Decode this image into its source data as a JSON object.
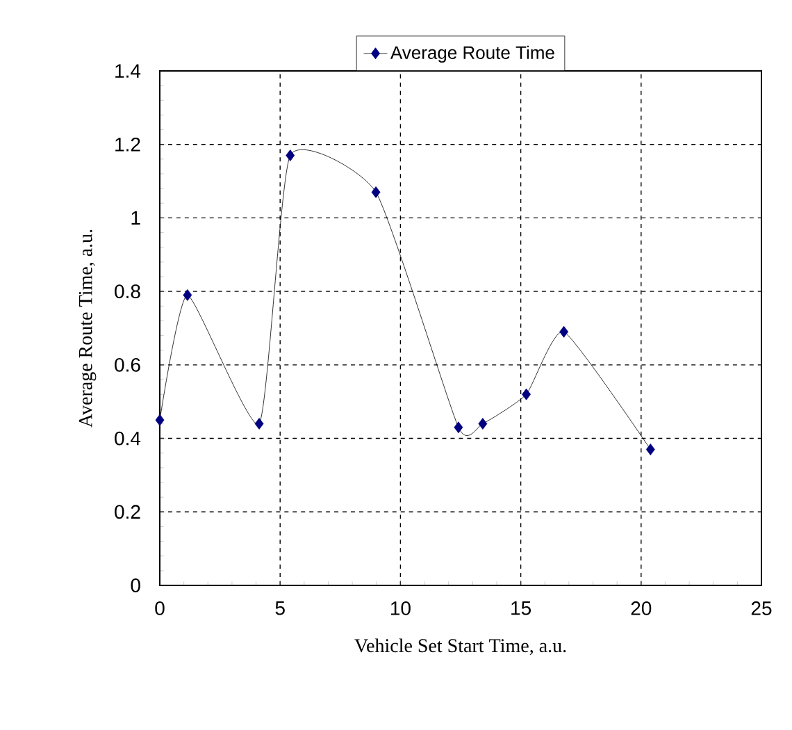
{
  "chart_data": {
    "type": "line",
    "xlabel": "Vehicle Set Start Time, a.u.",
    "ylabel": "Average Route Time, a.u.",
    "x": [
      0,
      1.15,
      4.13,
      5.42,
      8.98,
      12.41,
      13.42,
      15.23,
      16.79,
      20.39
    ],
    "series": [
      {
        "name": "Average Route Time",
        "color": "#000080",
        "values": [
          0.45,
          0.79,
          0.44,
          1.17,
          1.07,
          0.43,
          0.44,
          0.52,
          0.69,
          0.37
        ]
      }
    ],
    "xlim": [
      0,
      25
    ],
    "ylim": [
      0,
      1.4
    ],
    "xticks": [
      0,
      5,
      10,
      15,
      20,
      25
    ],
    "yticks": [
      0,
      0.2,
      0.4,
      0.6,
      0.8,
      1,
      1.2,
      1.4
    ],
    "grid": true,
    "legend": "top",
    "marker": "diamond",
    "line_style": "solid"
  }
}
